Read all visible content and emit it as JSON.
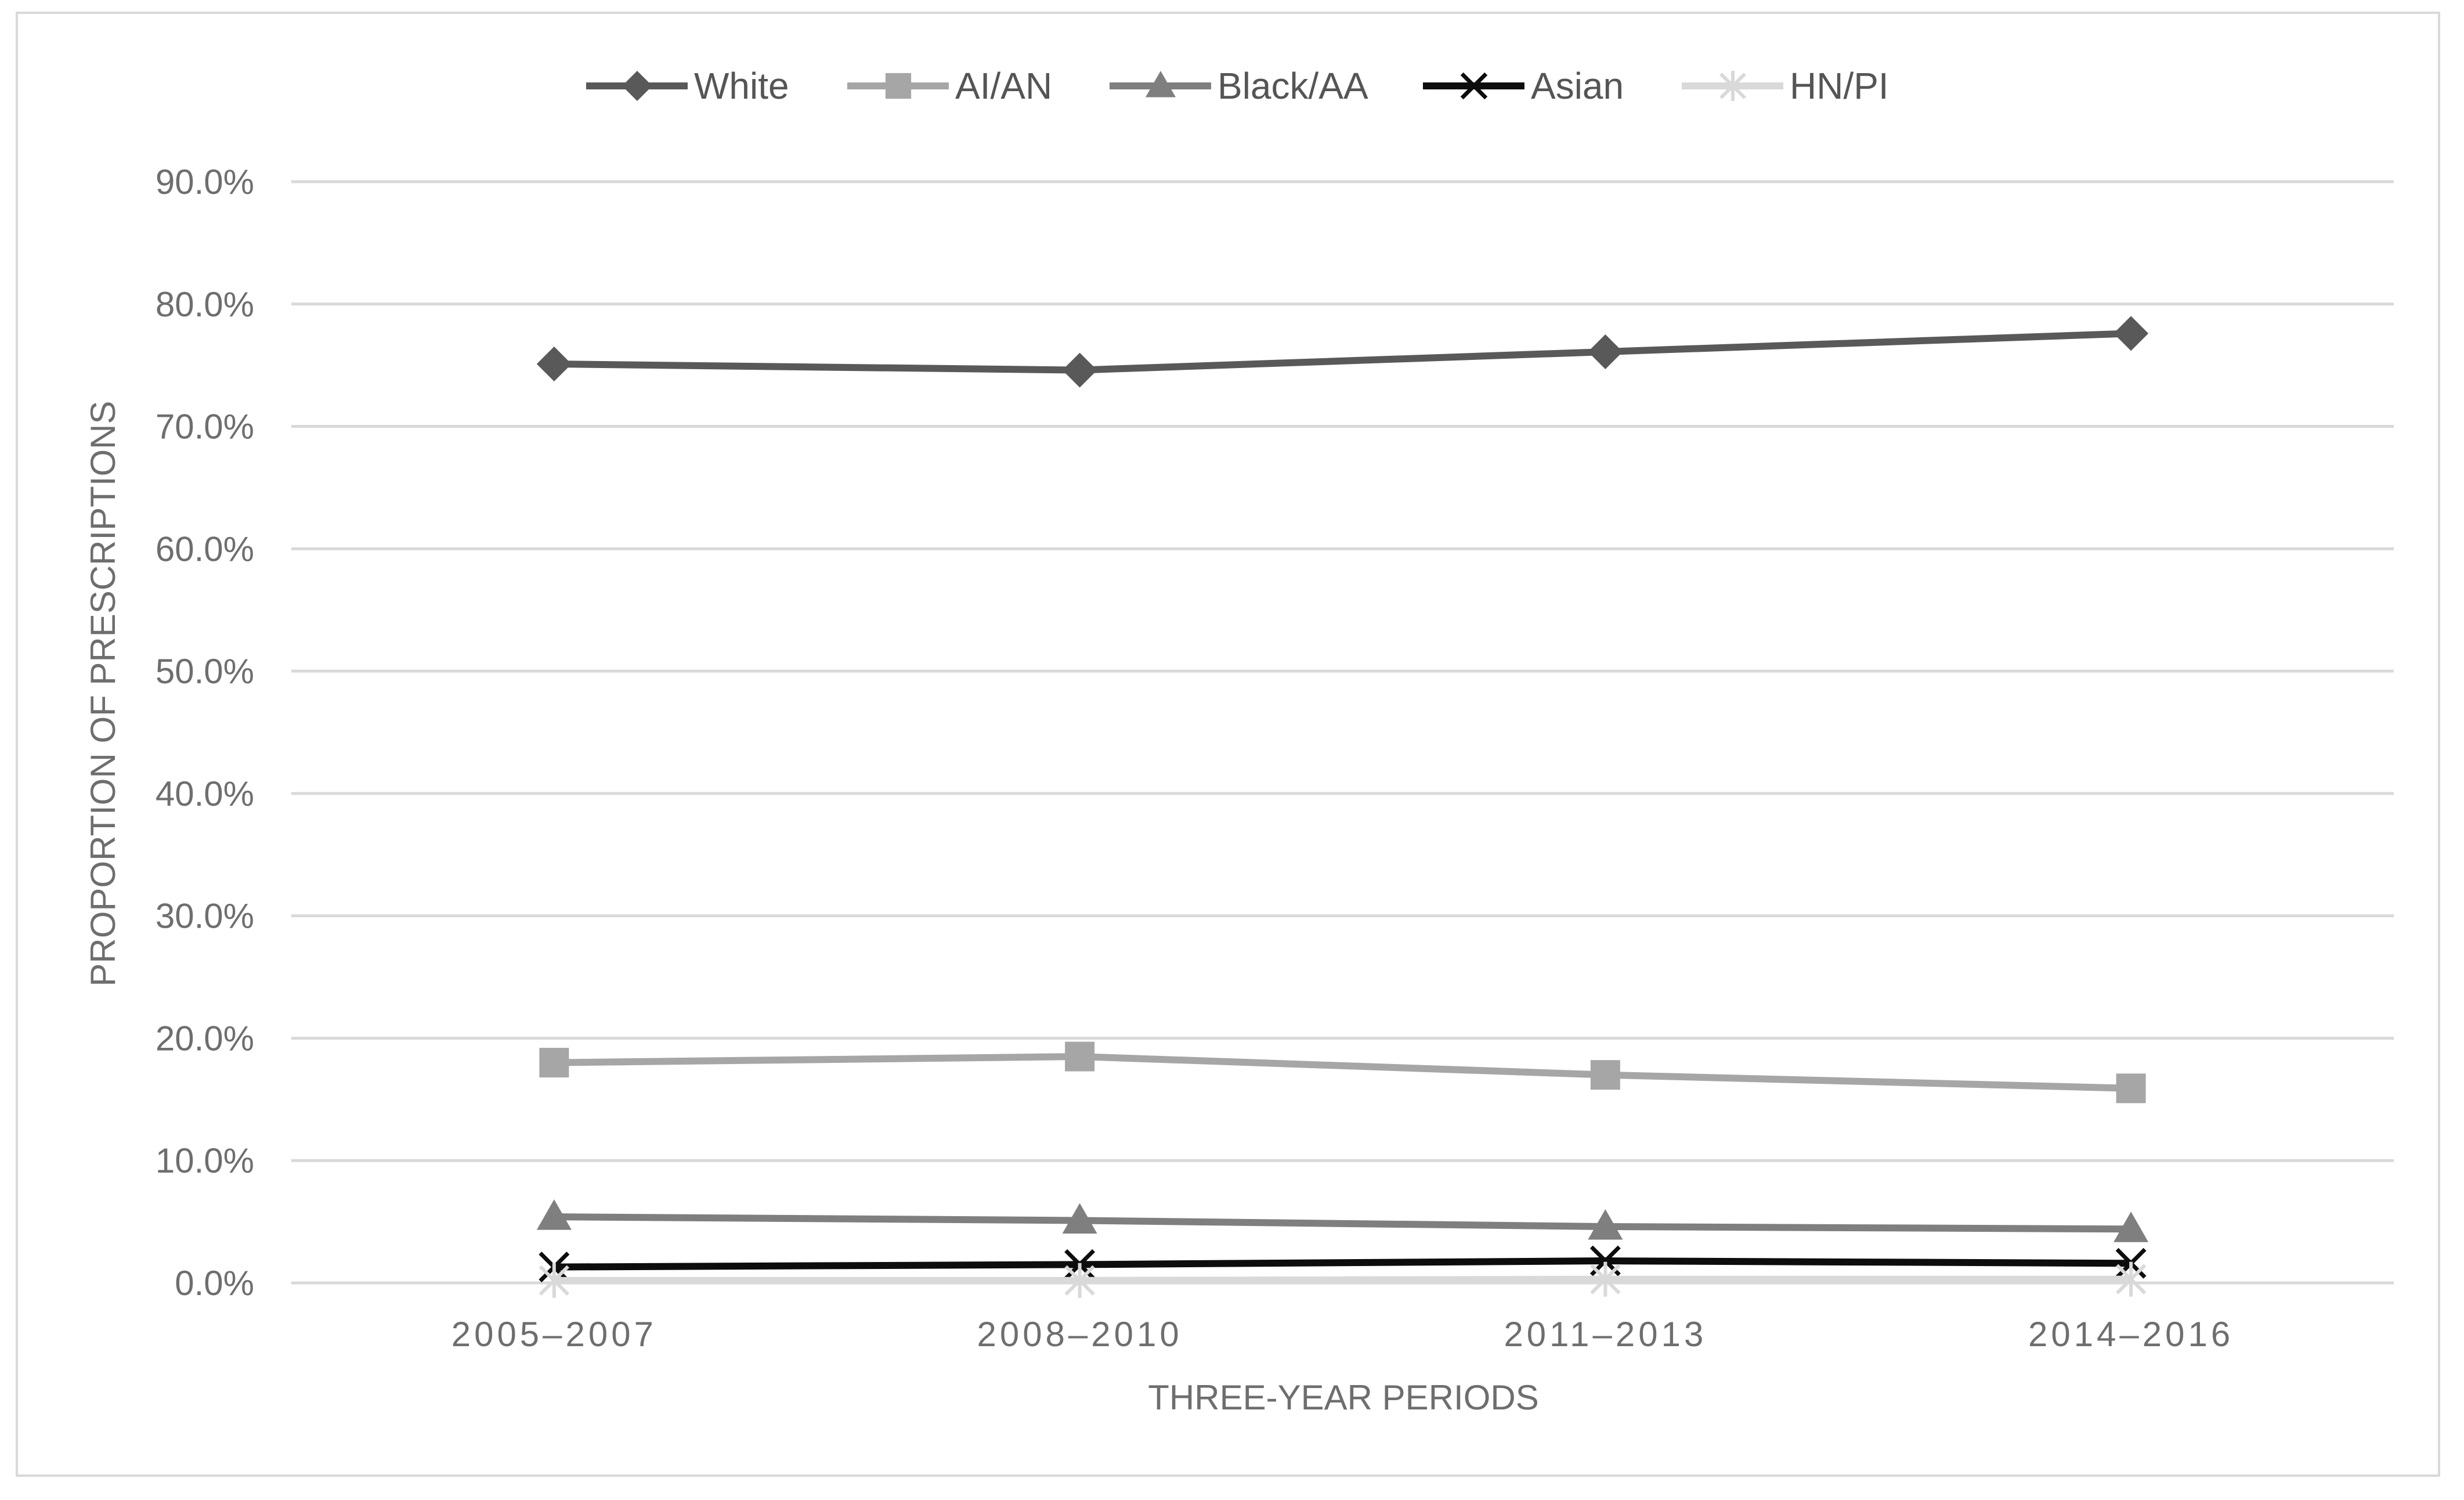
{
  "chart_data": {
    "type": "line",
    "title": "",
    "xlabel": "THREE-YEAR PERIODS",
    "ylabel": "PROPORTION OF PRESCRIPTIONS",
    "categories": [
      "2005–2007",
      "2008–2010",
      "2011–2013",
      "2014–2016"
    ],
    "ylim": [
      0,
      90
    ],
    "yticks": [
      "0.0%",
      "10.0%",
      "20.0%",
      "30.0%",
      "40.0%",
      "50.0%",
      "60.0%",
      "70.0%",
      "80.0%",
      "90.0%"
    ],
    "grid": true,
    "legend_position": "top",
    "series": [
      {
        "name": "White",
        "values": [
          75.1,
          74.6,
          76.1,
          77.6
        ],
        "color": "#595959",
        "marker": "diamond"
      },
      {
        "name": "AI/AN",
        "values": [
          18.0,
          18.5,
          17.0,
          15.9
        ],
        "color": "#a6a6a6",
        "marker": "square"
      },
      {
        "name": "Black/AA",
        "values": [
          5.4,
          5.1,
          4.6,
          4.4
        ],
        "color": "#7f7f7f",
        "marker": "triangle"
      },
      {
        "name": "Asian",
        "values": [
          1.3,
          1.5,
          1.8,
          1.6
        ],
        "color": "#0d0d0d",
        "marker": "x"
      },
      {
        "name": "HN/PI",
        "values": [
          0.2,
          0.2,
          0.3,
          0.3
        ],
        "color": "#d9d9d9",
        "marker": "star"
      }
    ]
  }
}
